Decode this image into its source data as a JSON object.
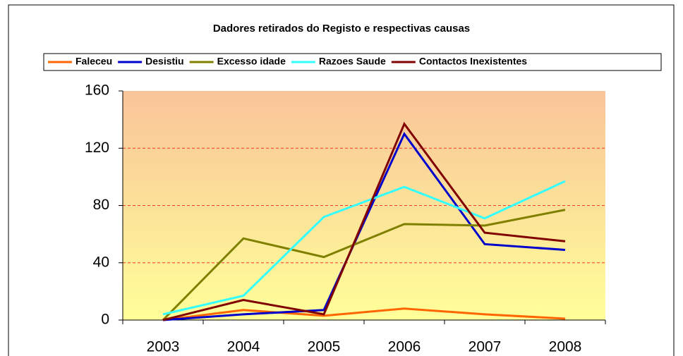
{
  "chart_data": {
    "type": "line",
    "title": "Dadores retirados do Registo e respectivas causas",
    "categories": [
      "2003",
      "2004",
      "2005",
      "2006",
      "2007",
      "2008"
    ],
    "series": [
      {
        "name": "Faleceu",
        "color": "#ff6600",
        "values": [
          0,
          7,
          3,
          8,
          4,
          1
        ]
      },
      {
        "name": "Desistiu",
        "color": "#0000cc",
        "values": [
          0,
          4,
          7,
          130,
          53,
          49
        ]
      },
      {
        "name": "Excesso idade",
        "color": "#808000",
        "values": [
          0,
          57,
          44,
          67,
          66,
          77
        ]
      },
      {
        "name": "Razoes Saude",
        "color": "#33ffff",
        "values": [
          4,
          17,
          72,
          93,
          71,
          97
        ]
      },
      {
        "name": "Contactos Inexistentes",
        "color": "#800000",
        "values": [
          0,
          14,
          4,
          137,
          61,
          55
        ]
      }
    ],
    "ylim": [
      0,
      160
    ],
    "yticks": [
      0,
      40,
      80,
      120,
      160
    ],
    "grid": true
  }
}
